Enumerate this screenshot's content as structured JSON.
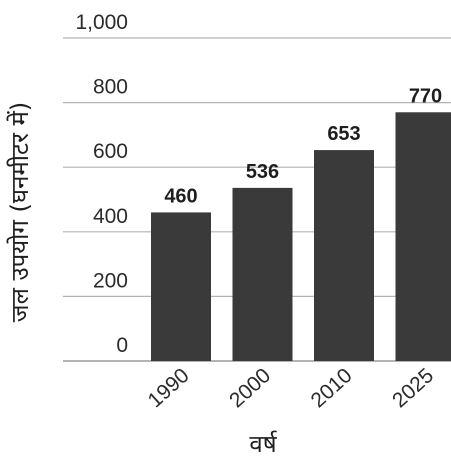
{
  "chart_data": {
    "type": "bar",
    "categories": [
      "1990",
      "2000",
      "2010",
      "2025"
    ],
    "values": [
      460,
      536,
      653,
      770
    ],
    "data_labels": [
      "460",
      "536",
      "653",
      "770"
    ],
    "title": "",
    "xlabel": "वर्ष",
    "ylabel": "जल उपयोग (घनमीटर में)",
    "ylim": [
      0,
      1000
    ],
    "yticks": [
      0,
      200,
      400,
      600,
      800,
      1000
    ],
    "ytick_labels": [
      "0",
      "200",
      "400",
      "600",
      "800",
      "1,000"
    ],
    "grid": true,
    "bar_color": "#3a3a3a"
  }
}
